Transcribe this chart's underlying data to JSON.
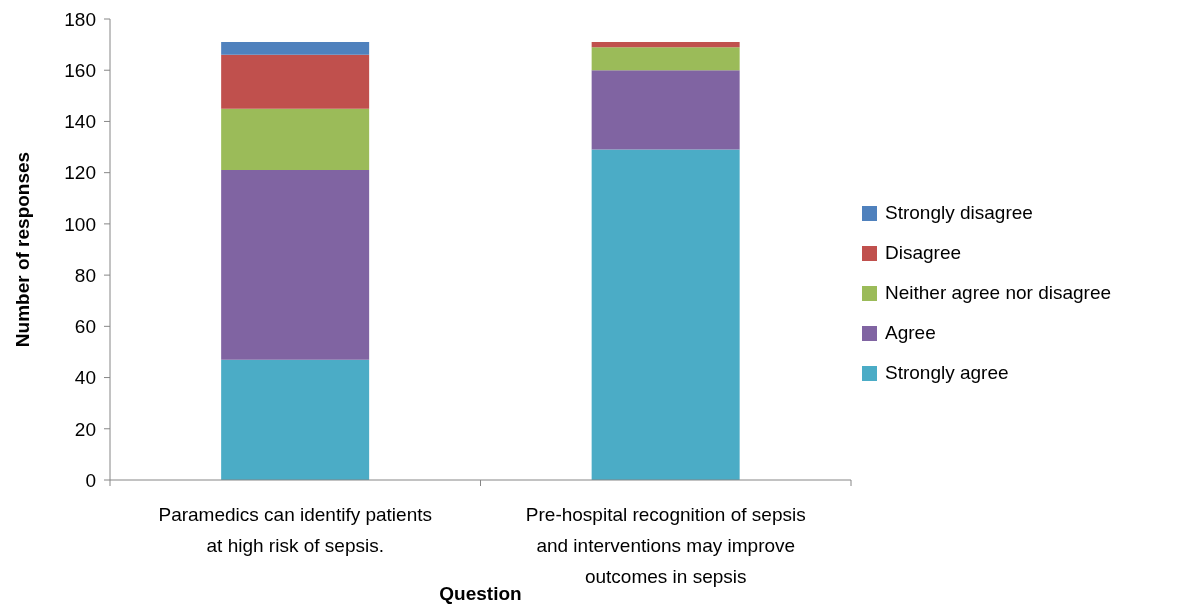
{
  "chart_data": {
    "type": "bar",
    "stacked": true,
    "xlabel": "Question",
    "ylabel": "Number of responses",
    "categories": [
      "Paramedics can identify patients at high risk of sepsis.",
      "Pre-hospital recognition of sepsis and interventions may improve outcomes in sepsis"
    ],
    "series": [
      {
        "name": "Strongly agree",
        "color": "#4bacc6",
        "values": [
          47,
          129
        ]
      },
      {
        "name": "Agree",
        "color": "#8064a2",
        "values": [
          74,
          31
        ]
      },
      {
        "name": "Neither agree nor disagree",
        "color": "#9bbb59",
        "values": [
          24,
          9
        ]
      },
      {
        "name": "Disagree",
        "color": "#c0504d",
        "values": [
          21,
          2
        ]
      },
      {
        "name": "Strongly disagree",
        "color": "#4f81bd",
        "values": [
          5,
          0
        ]
      }
    ],
    "ylim": [
      0,
      180
    ],
    "yticks": [
      0,
      20,
      40,
      60,
      80,
      100,
      120,
      140,
      160,
      180
    ],
    "legend": "right"
  }
}
